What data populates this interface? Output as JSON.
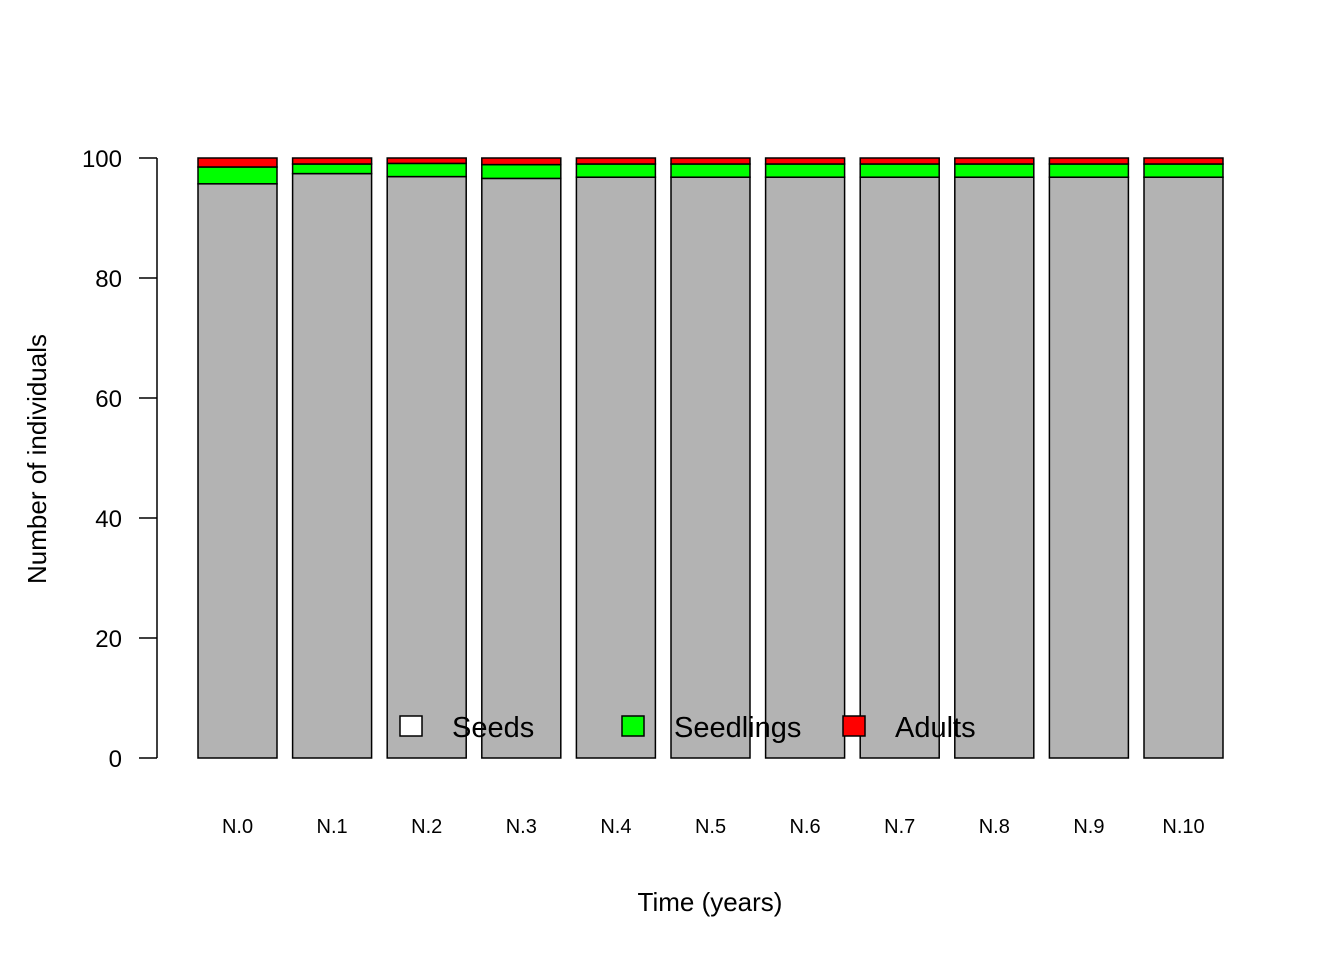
{
  "chart_data": {
    "type": "bar",
    "stacked": true,
    "categories": [
      "N.0",
      "N.1",
      "N.2",
      "N.3",
      "N.4",
      "N.5",
      "N.6",
      "N.7",
      "N.8",
      "N.9",
      "N.10"
    ],
    "series": [
      {
        "name": "Seeds",
        "color": "#b3b3b3",
        "legend_color": "#ffffff",
        "values": [
          95.7,
          97.4,
          96.9,
          96.6,
          96.8,
          96.8,
          96.8,
          96.8,
          96.8,
          96.8,
          96.8
        ]
      },
      {
        "name": "Seedlings",
        "color": "#00ff00",
        "legend_color": "#00ff00",
        "values": [
          2.8,
          1.6,
          2.2,
          2.3,
          2.2,
          2.2,
          2.2,
          2.2,
          2.2,
          2.2,
          2.2
        ]
      },
      {
        "name": "Adults",
        "color": "#ff0000",
        "legend_color": "#ff0000",
        "values": [
          1.5,
          1.0,
          0.9,
          1.1,
          1.0,
          1.0,
          1.0,
          1.0,
          1.0,
          1.0,
          1.0
        ]
      }
    ],
    "yticks": [
      0,
      20,
      40,
      60,
      80,
      100
    ],
    "ylim": [
      0,
      100
    ],
    "xlabel": "Time (years)",
    "ylabel": "Number of individuals",
    "legend": "bottom-center",
    "grid": false
  }
}
